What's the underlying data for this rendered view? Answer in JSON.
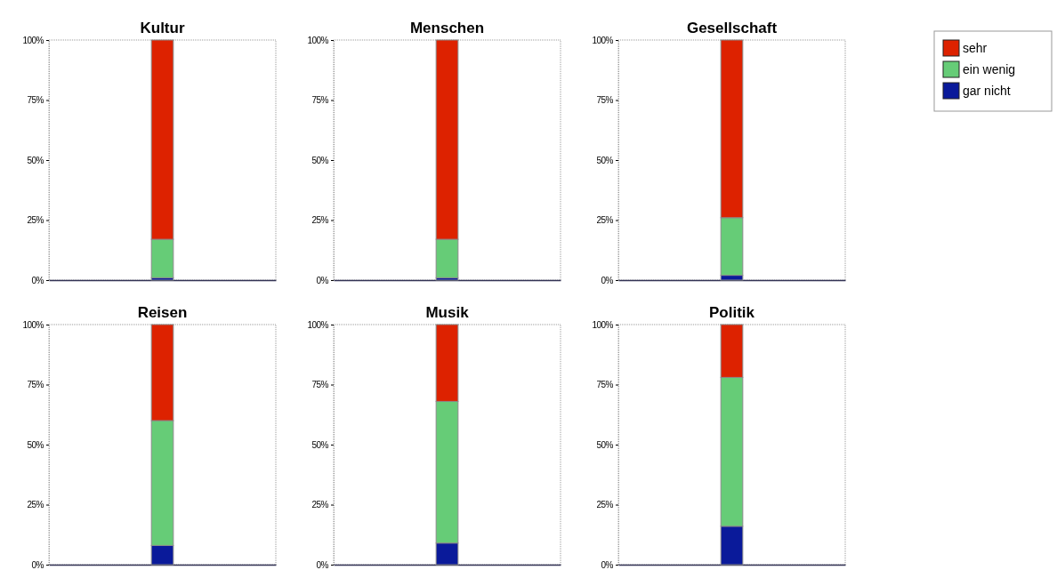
{
  "chart_data": [
    {
      "type": "bar",
      "title": "Kultur",
      "categories": [
        null
      ],
      "stacked": true,
      "ylim": [
        0,
        100
      ],
      "yticks": [
        {
          "value": 0,
          "label": "0%"
        },
        {
          "value": 25,
          "label": "25%"
        },
        {
          "value": 50,
          "label": "50%"
        },
        {
          "value": 75,
          "label": "75%"
        },
        {
          "value": 100,
          "label": "100%"
        }
      ],
      "tick_labels": "y",
      "legend": false,
      "series": [
        {
          "color": "#0a1a9a",
          "values": [
            1
          ]
        },
        {
          "color": "#66cc77",
          "values": [
            16
          ]
        },
        {
          "color": "#dd2200",
          "values": [
            83
          ]
        }
      ]
    },
    {
      "type": "bar",
      "title": "Menschen",
      "categories": [
        null
      ],
      "stacked": true,
      "ylim": [
        0,
        100
      ],
      "yticks": [
        {
          "value": 0,
          "label": "0%"
        },
        {
          "value": 25,
          "label": "25%"
        },
        {
          "value": 50,
          "label": "50%"
        },
        {
          "value": 75,
          "label": "75%"
        },
        {
          "value": 100,
          "label": "100%"
        }
      ],
      "tick_labels": "y",
      "legend": false,
      "series": [
        {
          "color": "#0a1a9a",
          "values": [
            1
          ]
        },
        {
          "color": "#66cc77",
          "values": [
            16
          ]
        },
        {
          "color": "#dd2200",
          "values": [
            83
          ]
        }
      ]
    },
    {
      "type": "bar",
      "title": "Gesellschaft",
      "categories": [
        null
      ],
      "stacked": true,
      "ylim": [
        0,
        100
      ],
      "yticks": [
        {
          "value": 0,
          "label": "0%"
        },
        {
          "value": 25,
          "label": "25%"
        },
        {
          "value": 50,
          "label": "50%"
        },
        {
          "value": 75,
          "label": "75%"
        },
        {
          "value": 100,
          "label": "100%"
        }
      ],
      "tick_labels": "y",
      "legend": "right",
      "series": [
        {
          "name": "gar nicht",
          "color": "#0a1a9a",
          "values": [
            2
          ]
        },
        {
          "name": "ein wenig",
          "color": "#66cc77",
          "values": [
            24
          ]
        },
        {
          "name": "sehr",
          "color": "#dd2200",
          "values": [
            74
          ]
        }
      ]
    },
    {
      "type": "bar",
      "title": "Reisen",
      "categories": [
        null
      ],
      "stacked": true,
      "ylim": [
        0,
        100
      ],
      "yticks": [
        {
          "value": 0,
          "label": "0%"
        },
        {
          "value": 25,
          "label": "25%"
        },
        {
          "value": 50,
          "label": "50%"
        },
        {
          "value": 75,
          "label": "75%"
        },
        {
          "value": 100,
          "label": "100%"
        }
      ],
      "tick_labels": "y",
      "legend": false,
      "series": [
        {
          "color": "#0a1a9a",
          "values": [
            8
          ]
        },
        {
          "color": "#66cc77",
          "values": [
            52
          ]
        },
        {
          "color": "#dd2200",
          "values": [
            40
          ]
        }
      ]
    },
    {
      "type": "bar",
      "title": "Musik",
      "categories": [
        null
      ],
      "stacked": true,
      "ylim": [
        0,
        100
      ],
      "yticks": [
        {
          "value": 0,
          "label": "0%"
        },
        {
          "value": 25,
          "label": "25%"
        },
        {
          "value": 50,
          "label": "50%"
        },
        {
          "value": 75,
          "label": "75%"
        },
        {
          "value": 100,
          "label": "100%"
        }
      ],
      "tick_labels": "y",
      "legend": false,
      "series": [
        {
          "color": "#0a1a9a",
          "values": [
            9
          ]
        },
        {
          "color": "#66cc77",
          "values": [
            59
          ]
        },
        {
          "color": "#dd2200",
          "values": [
            32
          ]
        }
      ]
    },
    {
      "type": "bar",
      "title": "Politik",
      "categories": [
        null
      ],
      "stacked": true,
      "ylim": [
        0,
        100
      ],
      "yticks": [
        {
          "value": 0,
          "label": "0%"
        },
        {
          "value": 25,
          "label": "25%"
        },
        {
          "value": 50,
          "label": "50%"
        },
        {
          "value": 75,
          "label": "75%"
        },
        {
          "value": 100,
          "label": "100%"
        }
      ],
      "tick_labels": "y",
      "legend": false,
      "series": [
        {
          "color": "#0a1a9a",
          "values": [
            16
          ]
        },
        {
          "color": "#66cc77",
          "values": [
            62
          ]
        },
        {
          "color": "#dd2200",
          "values": [
            22
          ]
        }
      ]
    }
  ]
}
